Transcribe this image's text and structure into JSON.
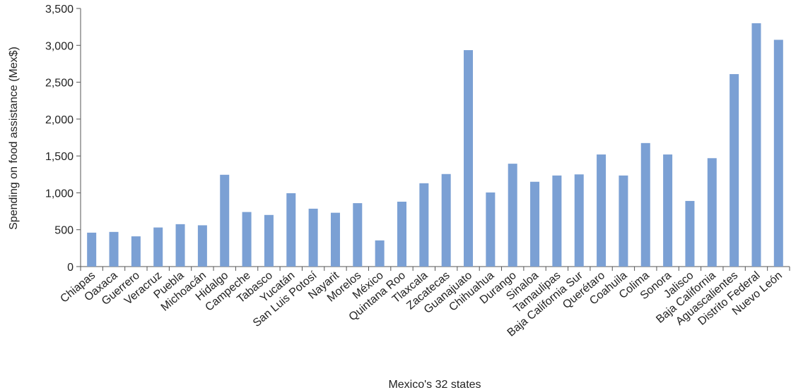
{
  "chart_data": {
    "type": "bar",
    "title": "",
    "xlabel": "Mexico's 32 states",
    "ylabel": "Spending on food assistance (Mex$)",
    "ylim": [
      0,
      3500
    ],
    "yticks": [
      "0",
      "500",
      "1,000",
      "1,500",
      "2,000",
      "2,500",
      "3,000",
      "3,500"
    ],
    "ytick_values": [
      0,
      500,
      1000,
      1500,
      2000,
      2500,
      3000,
      3500
    ],
    "grid": false,
    "bar_color": "#7ba0d4",
    "categories": [
      "Chiapas",
      "Oaxaca",
      "Guerrero",
      "Veracruz",
      "Puebla",
      "Michoacán",
      "Hidalgo",
      "Campeche",
      "Tabasco",
      "Yucatán",
      "San Luis Potosí",
      "Nayarit",
      "Morelos",
      "México",
      "Quintana Roo",
      "Tlaxcala",
      "Zacatecas",
      "Guanajuato",
      "Chihuahua",
      "Durango",
      "Sinaloa",
      "Tamaulipas",
      "Baja California Sur",
      "Querétaro",
      "Coahuila",
      "Colima",
      "Sonora",
      "Jalisco",
      "Baja California",
      "Aguascalientes",
      "Distrito Federal",
      "Nuevo León"
    ],
    "values": [
      460,
      470,
      410,
      530,
      575,
      560,
      1245,
      740,
      700,
      995,
      785,
      730,
      860,
      355,
      880,
      1130,
      1255,
      2935,
      1005,
      1395,
      1150,
      1235,
      1250,
      1520,
      1235,
      1675,
      1520,
      890,
      1470,
      2610,
      3300,
      3075
    ]
  }
}
